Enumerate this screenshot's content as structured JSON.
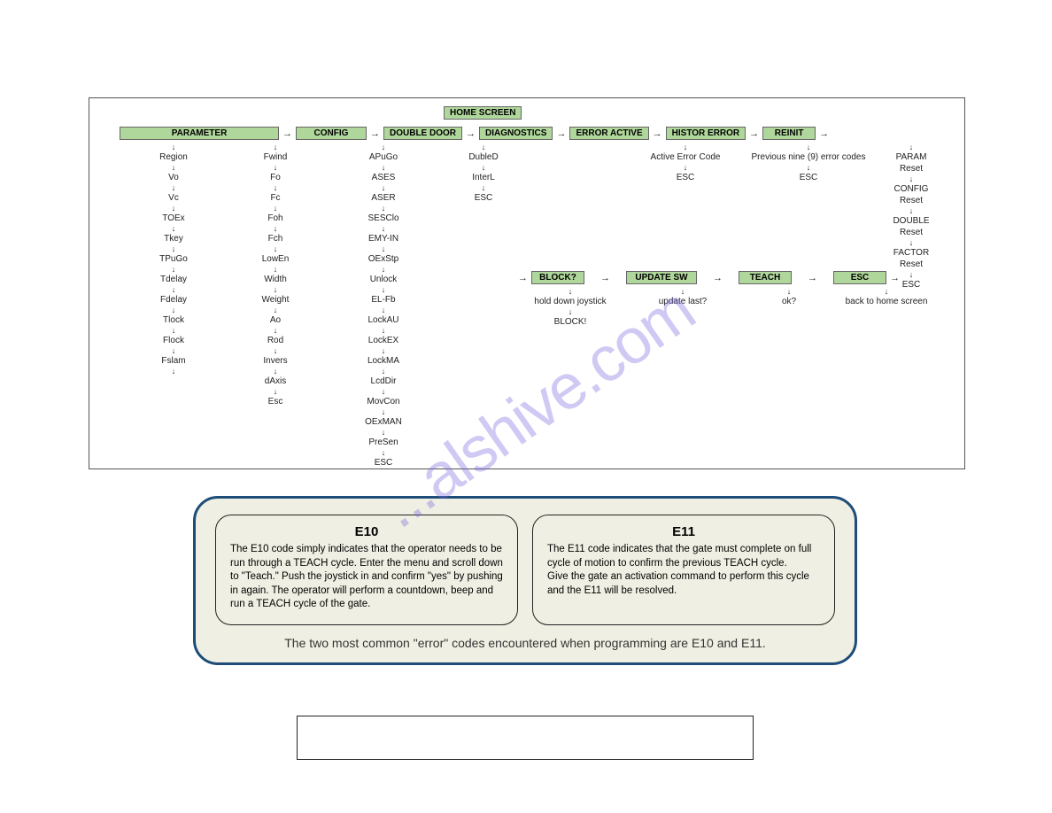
{
  "watermark_text": "...alshive.com",
  "colors": {
    "header_bg": "#b0d79b",
    "header_border": "#666666",
    "diagram_border": "#555555",
    "panel_bg": "#f0efe3",
    "panel_border": "#1d4d78",
    "card_border": "#222222",
    "watermark": "rgba(120,100,220,0.35)",
    "text": "#222222"
  },
  "diagram": {
    "top_header": "HOME SCREEN",
    "row1_headers": [
      "PARAMETER",
      "CONFIG",
      "DOUBLE DOOR",
      "DIAGNOSTICS",
      "ERROR ACTIVE",
      "HISTOR ERROR",
      "REINIT"
    ],
    "row2_headers": [
      "BLOCK?",
      "UPDATE SW",
      "TEACH",
      "ESC"
    ],
    "col_parameter_a": [
      "Region",
      "Vo",
      "Vc",
      "TOEx",
      "Tkey",
      "TPuGo",
      "Tdelay",
      "Fdelay",
      "Tlock",
      "Flock",
      "Fslam"
    ],
    "col_parameter_b": [
      "Fwind",
      "Fo",
      "Fc",
      "Foh",
      "Fch",
      "LowEn",
      "Width",
      "Weight",
      "Ao",
      "Rod",
      "Invers",
      "dAxis",
      "Esc"
    ],
    "col_config": [
      "APuGo",
      "ASES",
      "ASER",
      "SESClo",
      "EMY-IN",
      "OExStp",
      "Unlock",
      "EL-Fb",
      "LockAU",
      "LockEX",
      "LockMA",
      "LcdDir",
      "MovCon",
      "OExMAN",
      "PreSen",
      "ESC"
    ],
    "col_doubledoor": [
      "DubleD",
      "InterL",
      "ESC"
    ],
    "col_erroractive": [
      "Active Error Code",
      "ESC"
    ],
    "col_historerror": [
      "Previous nine (9) error codes",
      "ESC"
    ],
    "col_reinit": [
      "PARAM",
      "Reset",
      "CONFIG",
      "Reset",
      "DOUBLE",
      "Reset",
      "FACTOR",
      "Reset",
      "ESC"
    ],
    "col_block": [
      "hold down joystick",
      "BLOCK!"
    ],
    "col_updatesw": [
      "update last?"
    ],
    "col_teach": [
      "ok?"
    ],
    "col_esc": [
      "back to home screen"
    ]
  },
  "info": {
    "e10": {
      "title": "E10",
      "body": "The E10 code simply indicates that the operator needs to be run through a TEACH cycle.  Enter the menu and scroll down to \"Teach.\" Push the joystick in and confirm \"yes\" by pushing in again. The operator will perform a countdown, beep and run a TEACH cycle of the gate."
    },
    "e11": {
      "title": "E11",
      "body": "The E11 code indicates that the gate must complete on full cycle of motion to confirm the previous TEACH cycle.\nGive the gate an activation command to perform this cycle and the E11 will be resolved."
    },
    "caption": "The two most common \"error\" codes encountered when programming are E10 and E11."
  }
}
